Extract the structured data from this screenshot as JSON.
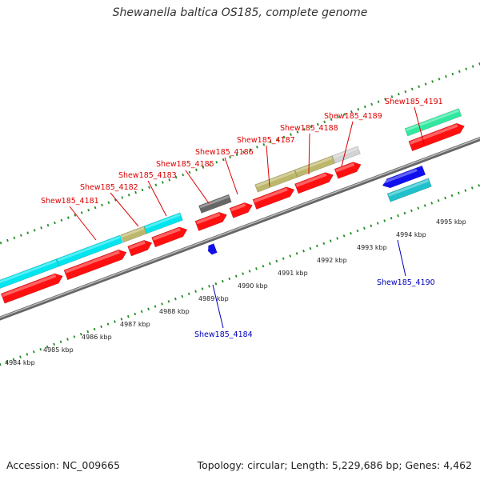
{
  "title": "Shewanella baltica OS185, complete genome",
  "footer": {
    "accession_label": "Accession:",
    "accession": "NC_009665",
    "topology_label": "Topology:",
    "topology": "circular",
    "length_label": "Length:",
    "length": "5,229,686 bp",
    "genes_label": "Genes:",
    "genes": "4,462"
  },
  "colors": {
    "backbone": "#888888",
    "tick_green": "#228b22",
    "top_label": "#dd0000",
    "bottom_label": "#0000bb",
    "cds_red": "#ff1010",
    "cyan": "#00e5ee",
    "khaki": "#bdb76b",
    "dark_grey": "#666666",
    "light_grey": "#d3d3d3",
    "blue": "#1010ee",
    "teal": "#20c0cc",
    "mint": "#30e8a0"
  },
  "scale_ticks": [
    {
      "label": "4984 kbp",
      "kbp": 4984
    },
    {
      "label": "4985 kbp",
      "kbp": 4985
    },
    {
      "label": "4986 kbp",
      "kbp": 4986
    },
    {
      "label": "4987 kbp",
      "kbp": 4987
    },
    {
      "label": "4988 kbp",
      "kbp": 4988
    },
    {
      "label": "4989 kbp",
      "kbp": 4989
    },
    {
      "label": "4990 kbp",
      "kbp": 4990
    },
    {
      "label": "4991 kbp",
      "kbp": 4991
    },
    {
      "label": "4992 kbp",
      "kbp": 4992
    },
    {
      "label": "4993 kbp",
      "kbp": 4993
    },
    {
      "label": "4994 kbp",
      "kbp": 4994
    },
    {
      "label": "4995 kbp",
      "kbp": 4995
    }
  ],
  "gene_labels_top": [
    "Shew185_4181",
    "Shew185_4182",
    "Shew185_4183",
    "Shew185_4185",
    "Shew185_4186",
    "Shew185_4187",
    "Shew185_4188",
    "Shew185_4189",
    "Shew185_4191"
  ],
  "gene_labels_bottom": [
    "Shew185_4184",
    "Shew185_4190"
  ]
}
